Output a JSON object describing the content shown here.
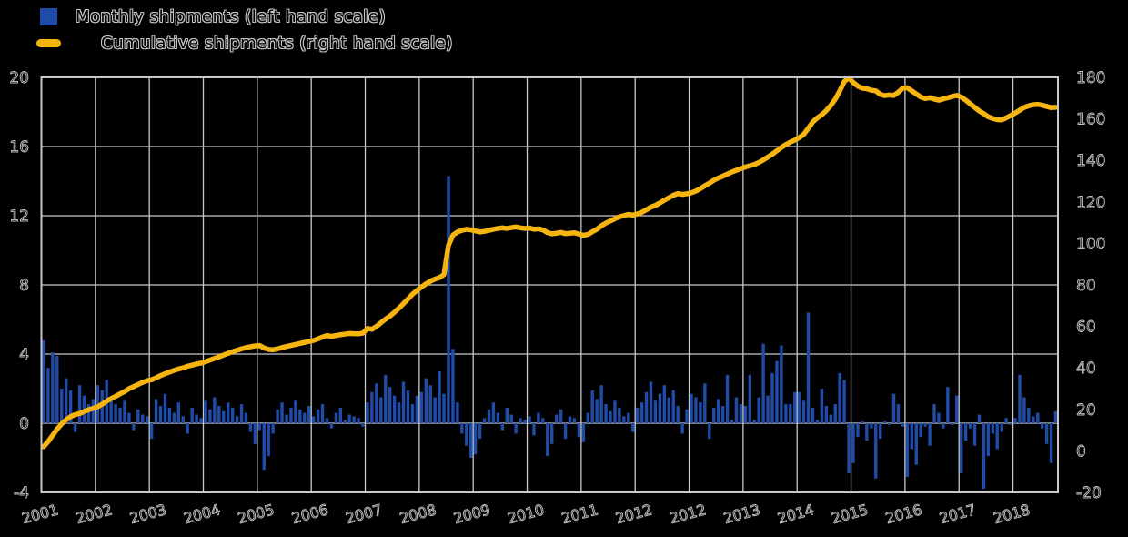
{
  "legend": {
    "items": [
      {
        "label": "Monthly shipments (left hand scale)",
        "swatch": "blue-square",
        "color": "#1e4ca8"
      },
      {
        "label": "Cumulative shipments (right hand scale)",
        "swatch": "yellow-line",
        "color": "#f6b40e"
      }
    ]
  },
  "colors": {
    "background": "#000000",
    "grid": "#c8c8c8",
    "axis_text_outline": "#c4c4c4",
    "bar": "#1e4ca8",
    "line": "#f6b40e"
  },
  "chart_data": {
    "type": "bar",
    "subtype": "combo-bar-line-dual-axis",
    "title": "",
    "xlabel": "",
    "ylabel_left": "",
    "ylabel_right": "",
    "grid": true,
    "legend_position": "top-left",
    "x_tick_labels": [
      "2001",
      "2002",
      "2003",
      "2004",
      "2005",
      "2006",
      "2007",
      "2008",
      "2009",
      "2010",
      "2011",
      "2012",
      "2012",
      "2013",
      "2014",
      "2015",
      "2016",
      "2017",
      "2018"
    ],
    "left_axis": {
      "min": -4,
      "max": 20,
      "tick_step": 4,
      "ticks": [
        "20",
        "16",
        "12",
        "8",
        "4",
        "0",
        "-4"
      ]
    },
    "right_axis": {
      "min": -20,
      "max": 180,
      "tick_step": 20,
      "ticks": [
        "180",
        "160",
        "140",
        "120",
        "100",
        "80",
        "60",
        "40",
        "20",
        "0",
        "-20"
      ]
    },
    "months_per_year_interval": 12,
    "n_points": 226,
    "series": [
      {
        "name": "Monthly shipments (left hand scale)",
        "type": "bar",
        "axis": "left",
        "values": [
          4.8,
          3.2,
          4.1,
          3.9,
          2.0,
          2.6,
          1.9,
          -0.5,
          2.2,
          1.6,
          1.1,
          1.4,
          2.2,
          1.9,
          2.5,
          1.4,
          1.1,
          0.9,
          1.3,
          0.6,
          -0.4,
          0.8,
          0.5,
          0.4,
          -0.9,
          1.4,
          1.0,
          1.7,
          0.9,
          0.6,
          1.2,
          0.4,
          -0.6,
          0.9,
          0.5,
          0.3,
          1.3,
          0.8,
          1.5,
          1.0,
          0.7,
          1.2,
          0.9,
          0.4,
          1.1,
          0.6,
          -0.5,
          -1.2,
          -0.4,
          -2.7,
          -1.9,
          -0.6,
          0.8,
          1.2,
          0.5,
          0.9,
          1.3,
          0.8,
          0.6,
          1.0,
          0.4,
          0.8,
          1.1,
          0.3,
          -0.3,
          0.6,
          0.9,
          0.2,
          0.5,
          0.4,
          0.3,
          -0.2,
          1.2,
          1.8,
          2.3,
          1.5,
          2.8,
          2.1,
          1.6,
          1.2,
          2.4,
          1.9,
          1.1,
          1.6,
          1.8,
          2.6,
          2.2,
          1.5,
          3.0,
          1.7,
          14.3,
          4.3,
          1.2,
          -0.6,
          -1.3,
          -2.0,
          -1.8,
          -0.9,
          0.3,
          0.8,
          1.2,
          0.6,
          -0.4,
          0.9,
          0.5,
          -0.6,
          0.3,
          0.2,
          0.4,
          -0.7,
          0.6,
          0.3,
          -1.9,
          -1.2,
          0.5,
          0.8,
          -0.9,
          0.4,
          0.3,
          -0.8,
          -1.1,
          0.6,
          1.9,
          1.4,
          2.2,
          1.1,
          0.7,
          1.3,
          0.9,
          0.4,
          0.6,
          -0.5,
          0.9,
          1.2,
          1.8,
          2.4,
          1.3,
          1.7,
          2.2,
          1.5,
          1.9,
          1.0,
          -0.6,
          0.8,
          1.7,
          1.5,
          1.2,
          2.3,
          -0.9,
          0.9,
          1.4,
          1.0,
          2.8,
          0.2,
          1.5,
          1.1,
          1.0,
          2.8,
          0.2,
          1.5,
          4.6,
          1.6,
          2.9,
          3.6,
          4.5,
          1.1,
          1.1,
          1.8,
          1.8,
          1.3,
          6.4,
          0.9,
          0.2,
          2.0,
          1.0,
          0.5,
          1.1,
          2.9,
          2.5,
          -2.9,
          -2.3,
          -0.8,
          0.1,
          -1.0,
          -0.3,
          -3.2,
          -0.9,
          0.1,
          -0.1,
          1.7,
          1.1,
          -0.2,
          -3.1,
          -1.5,
          -2.4,
          -0.8,
          -0.2,
          -1.3,
          1.1,
          0.6,
          -0.3,
          2.1,
          -0.1,
          1.6,
          -2.9,
          -1.0,
          -0.3,
          -1.3,
          0.5,
          -3.8,
          -1.9,
          -0.6,
          -1.5,
          -0.5,
          0.3,
          -0.1,
          0.3,
          2.8,
          1.5,
          0.9,
          0.4,
          0.6,
          -0.3,
          -1.2,
          -2.3,
          0.7
        ]
      },
      {
        "name": "Cumulative shipments (right hand scale)",
        "type": "line",
        "axis": "right",
        "values": [
          2.0,
          4.5,
          7.5,
          10.5,
          13.0,
          15.0,
          16.5,
          17.5,
          18.0,
          19.0,
          19.8,
          20.5,
          21.2,
          22.5,
          24.0,
          25.2,
          26.3,
          27.5,
          28.6,
          30.0,
          31.0,
          32.0,
          33.0,
          33.8,
          34.3,
          35.2,
          36.3,
          37.2,
          38.0,
          38.8,
          39.5,
          40.0,
          40.8,
          41.3,
          41.9,
          42.3,
          43.0,
          43.8,
          44.6,
          45.3,
          46.2,
          47.0,
          47.8,
          48.5,
          49.2,
          49.8,
          50.2,
          50.6,
          50.8,
          49.6,
          48.9,
          48.7,
          49.2,
          49.8,
          50.3,
          50.8,
          51.3,
          51.8,
          52.3,
          52.8,
          53.2,
          54.0,
          54.9,
          55.6,
          55.2,
          55.6,
          56.0,
          56.3,
          56.6,
          56.5,
          56.4,
          56.8,
          59.0,
          58.6,
          60.0,
          61.8,
          63.5,
          65.0,
          66.8,
          68.8,
          71.0,
          73.2,
          75.5,
          77.3,
          79.0,
          80.5,
          81.8,
          82.8,
          83.5,
          85.0,
          99.0,
          104.0,
          105.5,
          106.3,
          106.8,
          106.5,
          106.0,
          105.5,
          105.8,
          106.3,
          106.8,
          107.2,
          107.5,
          107.2,
          107.6,
          107.9,
          107.5,
          107.2,
          107.4,
          106.8,
          107.0,
          106.5,
          105.2,
          104.6,
          104.9,
          105.3,
          104.7,
          104.9,
          105.1,
          104.5,
          103.9,
          104.3,
          105.6,
          106.8,
          108.5,
          109.8,
          110.8,
          111.9,
          112.8,
          113.4,
          114.0,
          113.6,
          114.2,
          115.0,
          116.2,
          117.5,
          118.3,
          119.5,
          120.8,
          122.0,
          123.2,
          124.0,
          123.6,
          123.9,
          124.4,
          125.2,
          126.4,
          127.8,
          129.0,
          130.4,
          131.5,
          132.4,
          133.4,
          134.4,
          135.2,
          136.0,
          136.8,
          137.4,
          138.0,
          139.0,
          140.2,
          141.6,
          143.0,
          144.6,
          146.2,
          147.6,
          148.8,
          149.8,
          151.0,
          152.6,
          155.5,
          158.5,
          160.5,
          162.0,
          164.0,
          166.5,
          169.5,
          173.5,
          178.0,
          179.8,
          177.5,
          175.8,
          174.8,
          174.5,
          173.8,
          173.5,
          171.8,
          171.2,
          171.5,
          171.3,
          172.8,
          174.8,
          175.0,
          173.5,
          172.0,
          170.5,
          169.8,
          170.2,
          169.5,
          169.0,
          169.6,
          170.2,
          170.8,
          171.3,
          170.5,
          169.0,
          167.2,
          165.5,
          163.8,
          162.5,
          161.0,
          160.2,
          159.6,
          159.5,
          160.5,
          161.6,
          162.8,
          164.2,
          165.5,
          166.3,
          166.8,
          167.0,
          166.6,
          166.0,
          165.4,
          165.6
        ]
      }
    ]
  }
}
